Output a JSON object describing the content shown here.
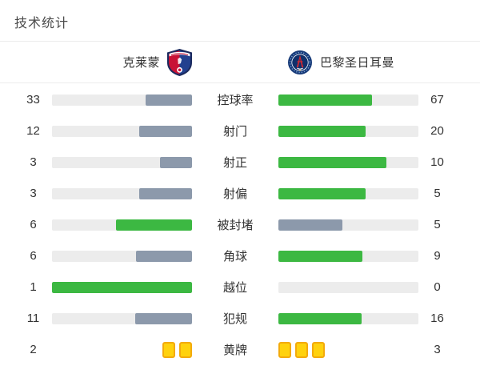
{
  "title": "技术统计",
  "teams": {
    "home": {
      "name": "克莱蒙"
    },
    "away": {
      "name": "巴黎圣日耳曼"
    }
  },
  "colors": {
    "green": "#3cb842",
    "slate": "#8c99ab",
    "track": "#ececec",
    "card_fill": "#ffd20e",
    "card_border": "#f3ab0c",
    "text": "#333333"
  },
  "stats": [
    {
      "label": "控球率",
      "home": 33,
      "away": 67,
      "type": "bar"
    },
    {
      "label": "射门",
      "home": 12,
      "away": 20,
      "type": "bar"
    },
    {
      "label": "射正",
      "home": 3,
      "away": 10,
      "type": "bar"
    },
    {
      "label": "射偏",
      "home": 3,
      "away": 5,
      "type": "bar"
    },
    {
      "label": "被封堵",
      "home": 6,
      "away": 5,
      "type": "bar"
    },
    {
      "label": "角球",
      "home": 6,
      "away": 9,
      "type": "bar"
    },
    {
      "label": "越位",
      "home": 1,
      "away": 0,
      "type": "bar"
    },
    {
      "label": "犯规",
      "home": 11,
      "away": 16,
      "type": "bar"
    },
    {
      "label": "黄牌",
      "home": 2,
      "away": 3,
      "type": "cards"
    }
  ],
  "chart_data": {
    "type": "bar",
    "orientation": "horizontal-paired",
    "title": "技术统计",
    "categories": [
      "控球率",
      "射门",
      "射正",
      "射偏",
      "被封堵",
      "角球",
      "越位",
      "犯规",
      "黄牌"
    ],
    "series": [
      {
        "name": "克莱蒙",
        "values": [
          33,
          12,
          3,
          3,
          6,
          6,
          1,
          11,
          2
        ]
      },
      {
        "name": "巴黎圣日耳曼",
        "values": [
          67,
          20,
          10,
          5,
          5,
          9,
          0,
          16,
          3
        ]
      }
    ],
    "notes": "Each row's bars are filled proportionally to value/(home+away); the larger value is green, the smaller is slate gray; 黄牌 row shows yellow card icons instead of bars",
    "legend_position": "top"
  }
}
